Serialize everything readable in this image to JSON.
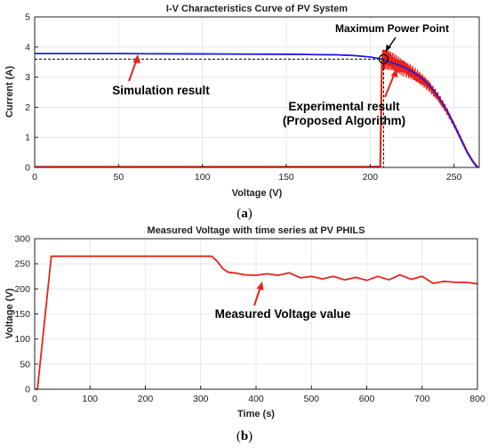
{
  "colors": {
    "sim": "#1a1ae6",
    "exp": "#e8231c",
    "ann": "#e8231c",
    "axis": "#222222",
    "grid": "#d9d9d9"
  },
  "chart_data": [
    {
      "type": "line",
      "title": "I-V Characteristics Curve of PV System",
      "xlabel": "Voltage (V)",
      "ylabel": "Current (A)",
      "xlim": [
        0,
        265
      ],
      "ylim": [
        0,
        5
      ],
      "xticks": [
        "0",
        "50",
        "100",
        "150",
        "200",
        "250"
      ],
      "yticks": [
        "0",
        "1",
        "2",
        "3",
        "4",
        "5"
      ],
      "grid": true,
      "series": [
        {
          "name": "Simulation result",
          "x": [
            0,
            50,
            100,
            150,
            180,
            190,
            200,
            205,
            208,
            212,
            216,
            220,
            225,
            230,
            235,
            240,
            245,
            250,
            255,
            258,
            261,
            263,
            264.5
          ],
          "y": [
            3.78,
            3.78,
            3.77,
            3.76,
            3.74,
            3.72,
            3.67,
            3.62,
            3.58,
            3.5,
            3.42,
            3.33,
            3.18,
            3.0,
            2.74,
            2.4,
            1.96,
            1.42,
            0.82,
            0.48,
            0.2,
            0.06,
            0
          ]
        },
        {
          "name": "Experimental result (Proposed Algorithm)",
          "x": [
            0,
            100,
            200,
            206,
            207,
            209,
            212,
            216,
            220,
            225,
            230,
            235,
            240,
            245,
            250,
            255,
            258,
            261,
            263,
            264
          ],
          "y": [
            0.02,
            0.02,
            0.02,
            0.03,
            3.55,
            3.6,
            3.55,
            3.42,
            3.3,
            3.15,
            2.95,
            2.7,
            2.38,
            1.95,
            1.42,
            0.85,
            0.5,
            0.22,
            0.08,
            0.02
          ]
        }
      ],
      "mpp": {
        "x": 208,
        "y": 3.6
      },
      "annotations": {
        "mpp_label": "Maximum Power Point",
        "sim_label": "Simulation result",
        "exp_label_1": "Experimental result",
        "exp_label_2": "(Proposed Algorithm)"
      }
    },
    {
      "type": "line",
      "title": "Measured Voltage with time series at PV PHILS",
      "xlabel": "Time (s)",
      "ylabel": "Voltage (V)",
      "xlim": [
        0,
        800
      ],
      "ylim": [
        0,
        300
      ],
      "xticks": [
        "0",
        "100",
        "200",
        "300",
        "400",
        "500",
        "600",
        "700",
        "800"
      ],
      "yticks": [
        "0",
        "50",
        "100",
        "150",
        "200",
        "250",
        "300"
      ],
      "grid": true,
      "series": [
        {
          "name": "Measured Voltage value",
          "x": [
            0,
            5,
            30,
            320,
            330,
            340,
            350,
            360,
            380,
            400,
            420,
            440,
            460,
            480,
            500,
            520,
            540,
            560,
            580,
            600,
            620,
            640,
            660,
            680,
            700,
            720,
            740,
            760,
            780,
            800
          ],
          "y": [
            0,
            0,
            265,
            265,
            255,
            240,
            233,
            232,
            228,
            227,
            230,
            227,
            232,
            222,
            225,
            220,
            225,
            218,
            223,
            217,
            225,
            218,
            228,
            219,
            225,
            211,
            215,
            213,
            213,
            210
          ]
        }
      ],
      "annotations": {
        "label": "Measured Voltage value"
      }
    }
  ],
  "captions": {
    "a_open": "(",
    "a_letter": "a",
    "a_close": ")",
    "b_open": "(",
    "b_letter": "b",
    "b_close": ")"
  }
}
